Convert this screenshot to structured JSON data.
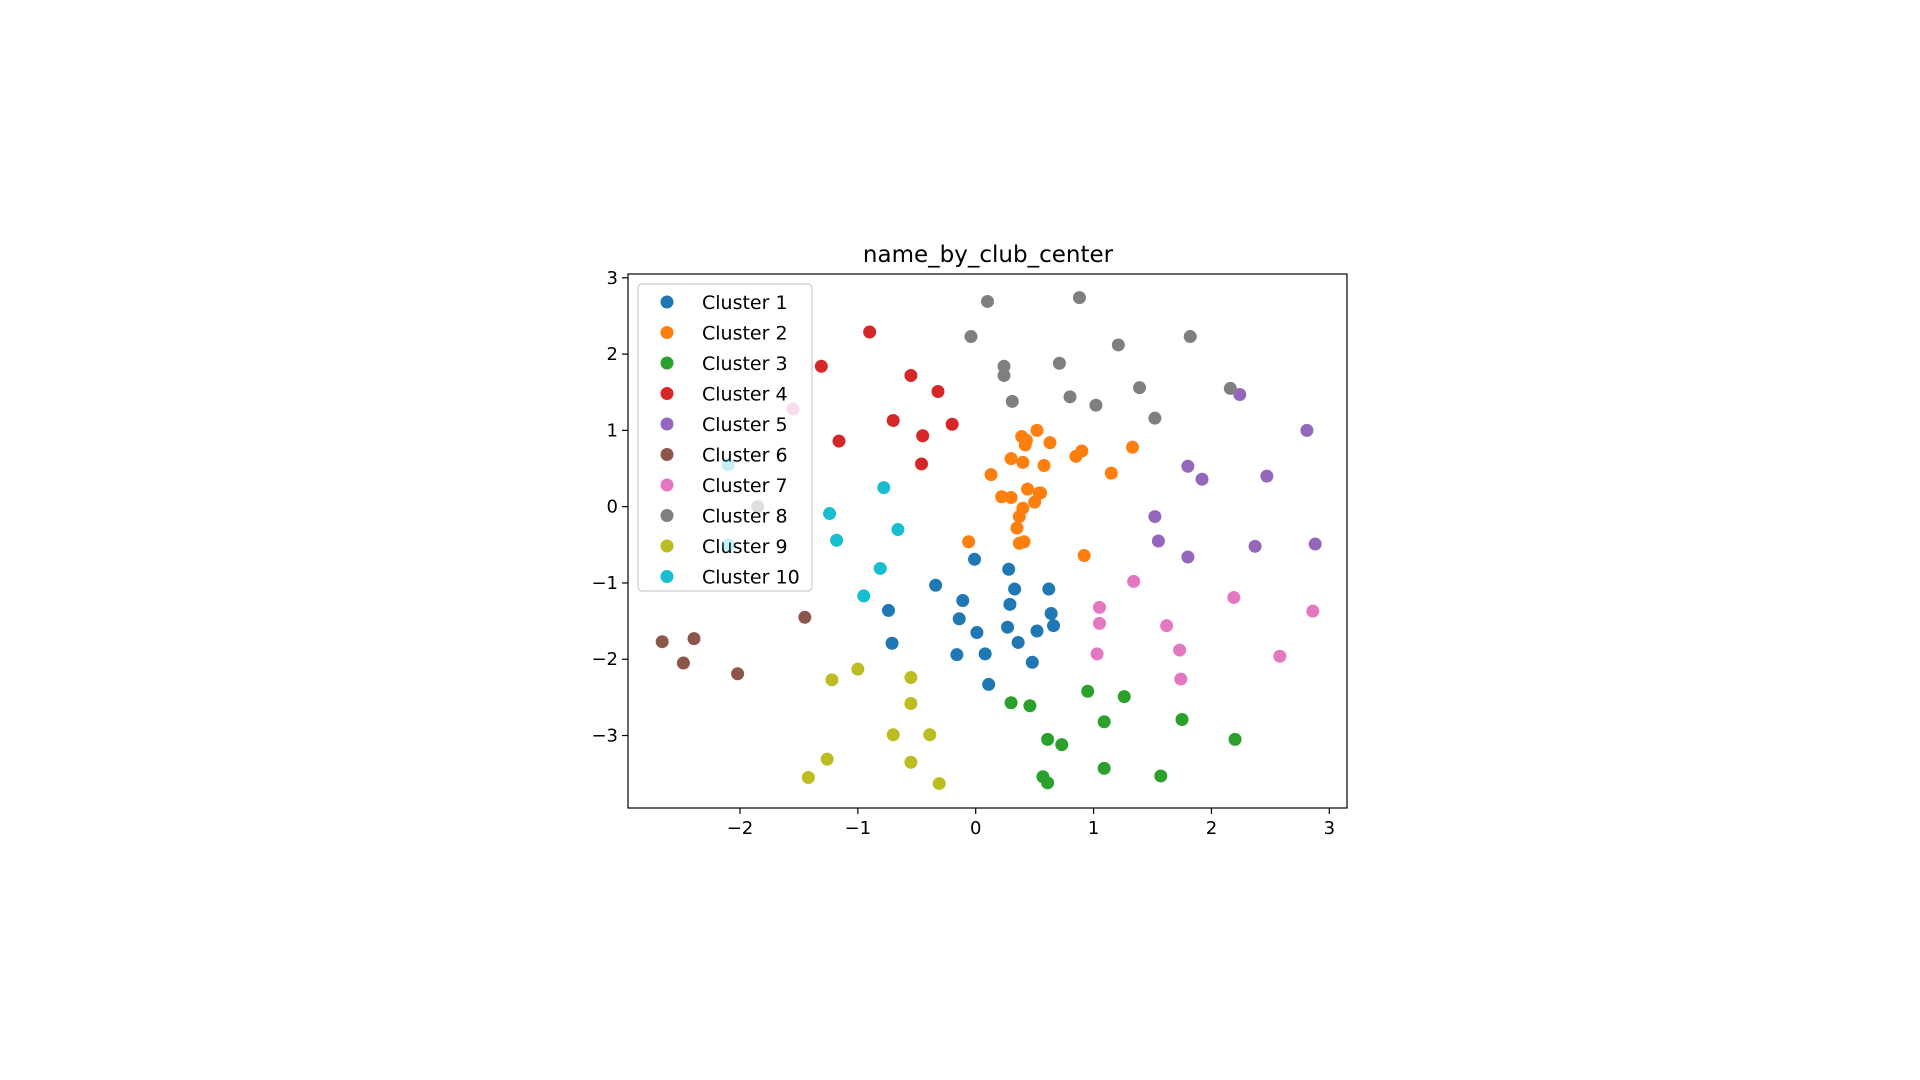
{
  "chart_data": {
    "type": "scatter",
    "title": "name_by_club_center",
    "xlabel": "",
    "ylabel": "",
    "xlim": [
      -2.95,
      3.15
    ],
    "ylim": [
      -3.95,
      3.05
    ],
    "xticks": [
      -2,
      -1,
      0,
      1,
      2,
      3
    ],
    "yticks": [
      -3,
      -2,
      -1,
      0,
      1,
      2,
      3
    ],
    "x_tick_labels": [
      "−2",
      "−1",
      "0",
      "1",
      "2",
      "3"
    ],
    "y_tick_labels": [
      "−3",
      "−2",
      "−1",
      "0",
      "1",
      "2",
      "3"
    ],
    "grid": false,
    "legend_position": "upper-left",
    "series": [
      {
        "name": "Cluster 1",
        "color": "#1f77b4",
        "points": [
          [
            -0.01,
            -0.69
          ],
          [
            0.28,
            -0.82
          ],
          [
            0.33,
            -1.08
          ],
          [
            0.62,
            -1.08
          ],
          [
            -0.34,
            -1.03
          ],
          [
            -0.11,
            -1.23
          ],
          [
            0.29,
            -1.28
          ],
          [
            -0.74,
            -1.36
          ],
          [
            0.64,
            -1.4
          ],
          [
            -0.14,
            -1.47
          ],
          [
            0.27,
            -1.58
          ],
          [
            0.01,
            -1.65
          ],
          [
            0.52,
            -1.63
          ],
          [
            0.66,
            -1.56
          ],
          [
            -0.71,
            -1.79
          ],
          [
            0.36,
            -1.78
          ],
          [
            0.08,
            -1.93
          ],
          [
            -0.16,
            -1.94
          ],
          [
            0.48,
            -2.04
          ],
          [
            0.11,
            -2.33
          ]
        ]
      },
      {
        "name": "Cluster 2",
        "color": "#ff7f0e",
        "points": [
          [
            0.39,
            0.92
          ],
          [
            0.43,
            0.87
          ],
          [
            0.42,
            0.81
          ],
          [
            0.52,
            1.0
          ],
          [
            0.63,
            0.84
          ],
          [
            0.9,
            0.73
          ],
          [
            0.85,
            0.66
          ],
          [
            1.33,
            0.78
          ],
          [
            0.3,
            0.63
          ],
          [
            0.4,
            0.58
          ],
          [
            0.58,
            0.54
          ],
          [
            0.13,
            0.42
          ],
          [
            1.15,
            0.44
          ],
          [
            0.44,
            0.23
          ],
          [
            0.22,
            0.13
          ],
          [
            0.3,
            0.12
          ],
          [
            0.54,
            0.18
          ],
          [
            0.5,
            0.06
          ],
          [
            0.4,
            -0.02
          ],
          [
            0.37,
            -0.13
          ],
          [
            0.35,
            -0.28
          ],
          [
            -0.06,
            -0.46
          ],
          [
            0.37,
            -0.48
          ],
          [
            0.41,
            -0.46
          ],
          [
            0.92,
            -0.64
          ],
          [
            0.55,
            0.18
          ]
        ]
      },
      {
        "name": "Cluster 3",
        "color": "#2ca02c",
        "points": [
          [
            0.3,
            -2.57
          ],
          [
            0.46,
            -2.61
          ],
          [
            0.95,
            -2.42
          ],
          [
            1.26,
            -2.49
          ],
          [
            1.09,
            -2.82
          ],
          [
            1.75,
            -2.79
          ],
          [
            0.61,
            -3.05
          ],
          [
            0.73,
            -3.12
          ],
          [
            2.2,
            -3.05
          ],
          [
            1.09,
            -3.43
          ],
          [
            0.57,
            -3.54
          ],
          [
            0.61,
            -3.62
          ],
          [
            1.57,
            -3.53
          ]
        ]
      },
      {
        "name": "Cluster 4",
        "color": "#d62728",
        "points": [
          [
            -0.9,
            2.29
          ],
          [
            -1.31,
            1.84
          ],
          [
            -0.55,
            1.72
          ],
          [
            -0.32,
            1.51
          ],
          [
            -0.7,
            1.13
          ],
          [
            -0.2,
            1.08
          ],
          [
            -0.45,
            0.93
          ],
          [
            -1.16,
            0.86
          ],
          [
            -0.46,
            0.56
          ]
        ]
      },
      {
        "name": "Cluster 5",
        "color": "#9467bd",
        "points": [
          [
            2.24,
            1.47
          ],
          [
            2.81,
            1.0
          ],
          [
            1.8,
            0.53
          ],
          [
            1.92,
            0.36
          ],
          [
            2.47,
            0.4
          ],
          [
            1.52,
            -0.13
          ],
          [
            1.55,
            -0.45
          ],
          [
            2.37,
            -0.52
          ],
          [
            2.88,
            -0.49
          ],
          [
            1.8,
            -0.66
          ]
        ]
      },
      {
        "name": "Cluster 6",
        "color": "#8c564b",
        "points": [
          [
            -1.45,
            -1.45
          ],
          [
            -2.66,
            -1.77
          ],
          [
            -2.39,
            -1.73
          ],
          [
            -2.48,
            -2.05
          ],
          [
            -2.02,
            -2.19
          ]
        ]
      },
      {
        "name": "Cluster 7",
        "color": "#e377c2",
        "points": [
          [
            1.34,
            -0.98
          ],
          [
            2.19,
            -1.19
          ],
          [
            1.05,
            -1.32
          ],
          [
            2.86,
            -1.37
          ],
          [
            1.05,
            -1.53
          ],
          [
            1.62,
            -1.56
          ],
          [
            1.03,
            -1.93
          ],
          [
            1.73,
            -1.88
          ],
          [
            2.58,
            -1.96
          ],
          [
            1.74,
            -2.26
          ]
        ]
      },
      {
        "name": "Cluster 8",
        "color": "#7f7f7f",
        "points": [
          [
            0.1,
            2.69
          ],
          [
            0.88,
            2.74
          ],
          [
            -0.04,
            2.23
          ],
          [
            1.82,
            2.23
          ],
          [
            1.21,
            2.12
          ],
          [
            0.24,
            1.84
          ],
          [
            0.71,
            1.88
          ],
          [
            0.24,
            1.72
          ],
          [
            1.39,
            1.56
          ],
          [
            2.16,
            1.55
          ],
          [
            0.8,
            1.44
          ],
          [
            0.31,
            1.38
          ],
          [
            1.02,
            1.33
          ],
          [
            1.52,
            1.16
          ]
        ]
      },
      {
        "name": "Cluster 9",
        "color": "#bcbd22",
        "points": [
          [
            -1.0,
            -2.13
          ],
          [
            -1.22,
            -2.27
          ],
          [
            -0.55,
            -2.24
          ],
          [
            -0.55,
            -2.58
          ],
          [
            -0.7,
            -2.99
          ],
          [
            -0.39,
            -2.99
          ],
          [
            -1.26,
            -3.31
          ],
          [
            -0.55,
            -3.35
          ],
          [
            -1.42,
            -3.55
          ],
          [
            -0.31,
            -3.63
          ]
        ]
      },
      {
        "name": "Cluster 10",
        "color": "#17becf",
        "points": [
          [
            -0.78,
            0.25
          ],
          [
            -1.24,
            -0.09
          ],
          [
            -0.66,
            -0.3
          ],
          [
            -1.18,
            -0.44
          ],
          [
            -0.81,
            -0.81
          ],
          [
            -0.95,
            -1.17
          ]
        ]
      }
    ]
  },
  "overlay_markers": [
    {
      "color": "#e377c2",
      "x": -1.55,
      "y": 1.28
    },
    {
      "color": "#17becf",
      "x": -2.1,
      "y": 0.55
    },
    {
      "color": "#7f7f7f",
      "x": -1.85,
      "y": 0.0
    },
    {
      "color": "#17becf",
      "x": -2.1,
      "y": -0.5
    }
  ]
}
